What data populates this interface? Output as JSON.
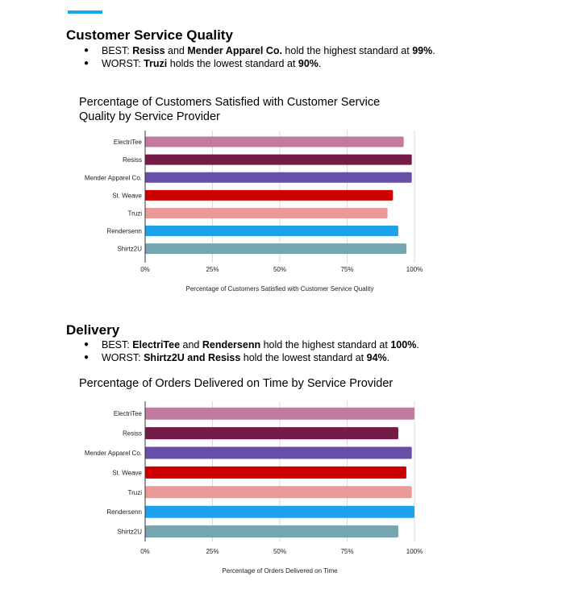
{
  "sections": [
    {
      "title": "Customer Service Quality",
      "bullets": [
        {
          "segments": [
            {
              "text": "BEST: ",
              "bold": false
            },
            {
              "text": "Resiss",
              "bold": true
            },
            {
              "text": " and ",
              "bold": false
            },
            {
              "text": "Mender Apparel Co.",
              "bold": true
            },
            {
              "text": " hold the highest standard at ",
              "bold": false
            },
            {
              "text": "99%",
              "bold": true
            },
            {
              "text": ".",
              "bold": false
            }
          ]
        },
        {
          "segments": [
            {
              "text": "WORST: ",
              "bold": false
            },
            {
              "text": "Truzi",
              "bold": true
            },
            {
              "text": " holds the lowest standard at ",
              "bold": false
            },
            {
              "text": "90%",
              "bold": true
            },
            {
              "text": ".",
              "bold": false
            }
          ]
        }
      ]
    },
    {
      "title": "Delivery",
      "bullets": [
        {
          "segments": [
            {
              "text": "BEST: ",
              "bold": false
            },
            {
              "text": "ElectriTee",
              "bold": true
            },
            {
              "text": " and ",
              "bold": false
            },
            {
              "text": "Rendersenn",
              "bold": true
            },
            {
              "text": " hold the highest standard at ",
              "bold": false
            },
            {
              "text": "100%",
              "bold": true
            },
            {
              "text": ".",
              "bold": false
            }
          ]
        },
        {
          "segments": [
            {
              "text": "WORST: ",
              "bold": false
            },
            {
              "text": "Shirtz2U and Resiss",
              "bold": true
            },
            {
              "text": " hold the lowest standard at ",
              "bold": false
            },
            {
              "text": "94%",
              "bold": true
            },
            {
              "text": ".",
              "bold": false
            }
          ]
        }
      ]
    }
  ],
  "colors": {
    "ElectriTee": "#c27ba0",
    "Resiss": "#741b47",
    "Mender Apparel Co.": "#674ea7",
    "St. Weave": "#cc0000",
    "Truzi": "#ea9999",
    "Rendersenn": "#1ca3ec",
    "Shirtz2U": "#76a5af"
  },
  "chart_data": [
    {
      "type": "bar",
      "orientation": "horizontal",
      "title": "Percentage of Customers Satisfied with Customer Service Quality by Service Provider",
      "xlabel": "Percentage of Customers Satisfied with Customer Service Quality",
      "categories": [
        "ElectriTee",
        "Resiss",
        "Mender Apparel Co.",
        "St. Weave",
        "Truzi",
        "Rendersenn",
        "Shirtz2U"
      ],
      "values": [
        96,
        99,
        99,
        92,
        90,
        94,
        97
      ],
      "xlim": [
        0,
        100
      ],
      "xticks": [
        "0%",
        "25%",
        "50%",
        "75%",
        "100%"
      ],
      "grid": true
    },
    {
      "type": "bar",
      "orientation": "horizontal",
      "title": "Percentage of Orders Delivered on Time by Service Provider",
      "xlabel": "Percentage of Orders Delivered on Time",
      "categories": [
        "ElectriTee",
        "Resiss",
        "Mender Apparel Co.",
        "St. Weave",
        "Truzi",
        "Rendersenn",
        "Shirtz2U"
      ],
      "values": [
        100,
        94,
        99,
        97,
        99,
        100,
        94
      ],
      "xlim": [
        0,
        100
      ],
      "xticks": [
        "0%",
        "25%",
        "50%",
        "75%",
        "100%"
      ],
      "grid": true
    }
  ]
}
